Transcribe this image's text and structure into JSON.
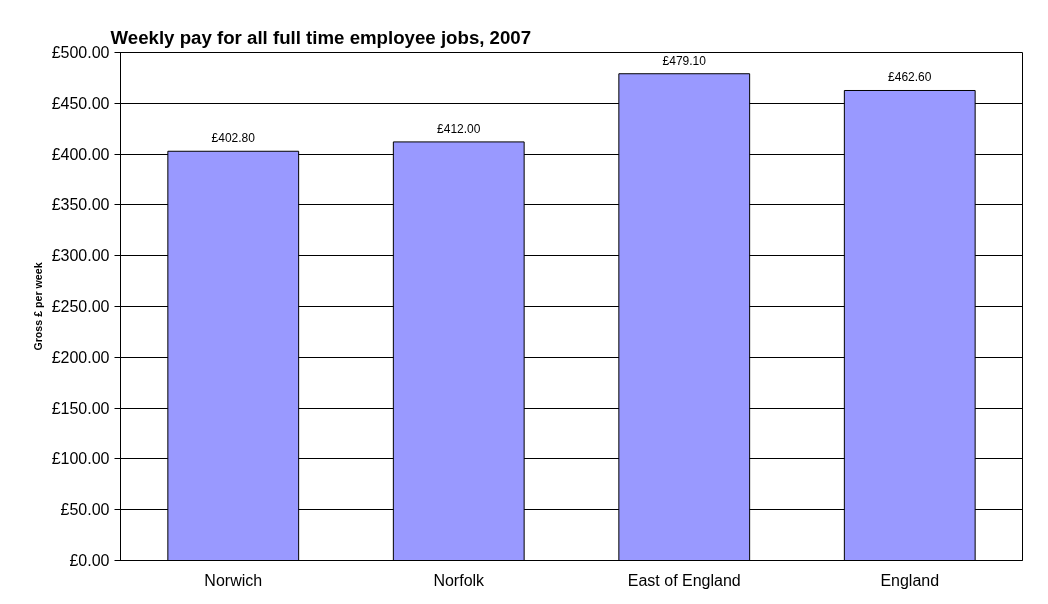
{
  "chart_data": {
    "type": "bar",
    "title": "Weekly pay for all full time employee jobs, 2007",
    "ylabel": "Gross £ per week",
    "categories": [
      "Norwich",
      "Norfolk",
      "East of England",
      "England"
    ],
    "values": [
      402.8,
      412.0,
      479.1,
      462.6
    ],
    "value_labels": [
      "£402.80",
      "£412.00",
      "£479.10",
      "£462.60"
    ],
    "color": "#9999ff",
    "ylim": [
      0,
      500
    ],
    "yticks": [
      {
        "value": 0,
        "label": "£0.00"
      },
      {
        "value": 50,
        "label": "£50.00"
      },
      {
        "value": 100,
        "label": "£100.00"
      },
      {
        "value": 150,
        "label": "£150.00"
      },
      {
        "value": 200,
        "label": "£200.00"
      },
      {
        "value": 250,
        "label": "£250.00"
      },
      {
        "value": 300,
        "label": "£300.00"
      },
      {
        "value": 350,
        "label": "£350.00"
      },
      {
        "value": 400,
        "label": "£400.00"
      },
      {
        "value": 450,
        "label": "£450.00"
      },
      {
        "value": 500,
        "label": "£500.00"
      }
    ],
    "grid": "y"
  }
}
